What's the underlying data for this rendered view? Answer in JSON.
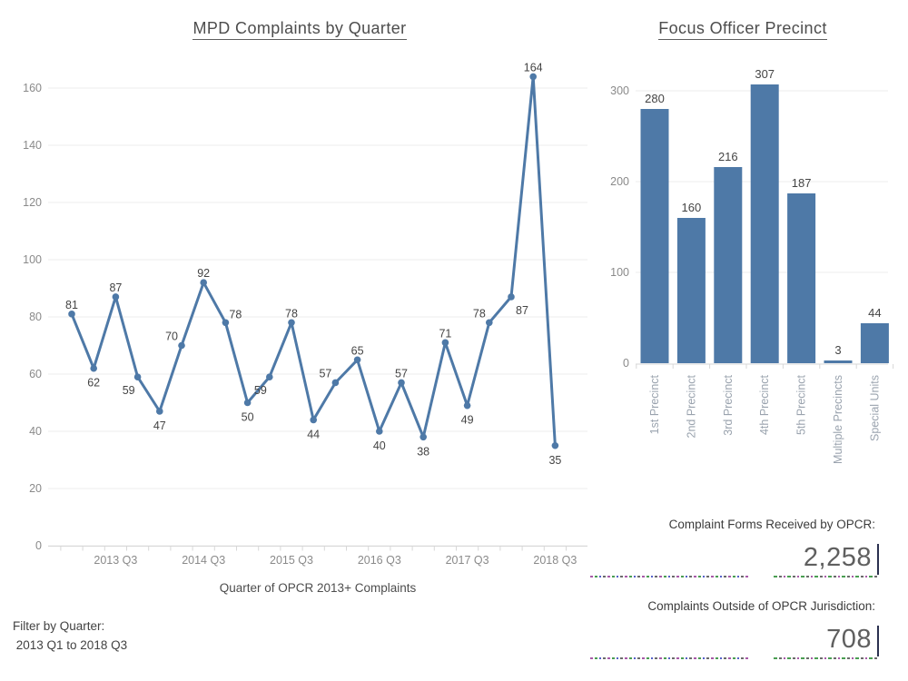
{
  "colors": {
    "accent": "#4e79a7",
    "title_text": "#4d4d4d",
    "axis_label": "#8a8a8a",
    "value_label": "#444444",
    "category_label": "#9aa3ae",
    "gridline": "#ececec",
    "axis_line": "#d7d7d7",
    "kpi_number": "#5f5f5f",
    "kpi_tick": "#2b3150"
  },
  "chart_data": [
    {
      "type": "line",
      "title": "MPD Complaints by Quarter",
      "xlabel": "Quarter of OPCR 2013+ Complaints",
      "ylabel": "",
      "x": [
        "2013 Q1",
        "2013 Q2",
        "2013 Q3",
        "2013 Q4",
        "2014 Q1",
        "2014 Q2",
        "2014 Q3",
        "2014 Q4",
        "2015 Q1",
        "2015 Q2",
        "2015 Q3",
        "2015 Q4",
        "2016 Q1",
        "2016 Q2",
        "2016 Q3",
        "2016 Q4",
        "2017 Q1",
        "2017 Q2",
        "2017 Q3",
        "2017 Q4",
        "2018 Q1",
        "2018 Q2",
        "2018 Q3"
      ],
      "values": [
        81,
        62,
        87,
        59,
        47,
        70,
        92,
        78,
        50,
        59,
        78,
        44,
        57,
        65,
        40,
        57,
        38,
        71,
        49,
        78,
        87,
        164,
        35
      ],
      "x_tick_labels": [
        "2013 Q3",
        "2014 Q3",
        "2015 Q3",
        "2016 Q3",
        "2017 Q3",
        "2018 Q3"
      ],
      "yticks": [
        0,
        20,
        40,
        60,
        80,
        100,
        120,
        140,
        160
      ],
      "ylim": [
        0,
        170
      ],
      "grid": true,
      "legend": "none",
      "label_positions": [
        "a",
        "b",
        "a",
        "bl",
        "b",
        "al",
        "a",
        "ar",
        "b",
        "bl",
        "a",
        "b",
        "al",
        "a",
        "b",
        "a",
        "b",
        "a",
        "b",
        "al",
        "br",
        "a",
        "b"
      ]
    },
    {
      "type": "bar",
      "title": "Focus Officer Precinct",
      "xlabel": "",
      "ylabel": "",
      "categories": [
        "1st Precinct",
        "2nd Precinct",
        "3rd Precinct",
        "4th Precinct",
        "5th Precinct",
        "Multiple Precincts",
        "Special Units"
      ],
      "values": [
        280,
        160,
        216,
        307,
        187,
        3,
        44
      ],
      "yticks": [
        0,
        100,
        200,
        300
      ],
      "ylim": [
        0,
        330
      ],
      "grid": true,
      "legend": "none"
    }
  ],
  "kpis": [
    {
      "label": "Complaint Forms Received by OPCR:",
      "value": "2,258"
    },
    {
      "label": "Complaints Outside of OPCR Jurisdiction:",
      "value": "708"
    }
  ],
  "filter": {
    "label": "Filter by Quarter:",
    "value": " 2013 Q1 to 2018 Q3"
  }
}
